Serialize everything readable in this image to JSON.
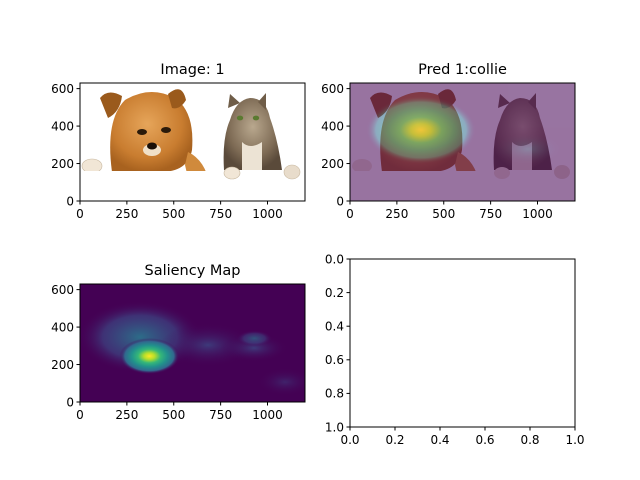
{
  "figure": {
    "background": "#ffffff"
  },
  "chart_data": [
    {
      "type": "image",
      "title": "Image: 1",
      "content": "photo of a dog and a cat",
      "x_ticks": [
        0,
        250,
        500,
        750,
        1000
      ],
      "y_ticks": [
        0,
        200,
        400,
        600
      ],
      "xlim": [
        0,
        1200
      ],
      "ylim": [
        630,
        0
      ]
    },
    {
      "type": "image",
      "title": "Pred 1:collie",
      "content": "photo overlaid with saliency heatmap",
      "x_ticks": [
        0,
        250,
        500,
        750,
        1000
      ],
      "y_ticks": [
        0,
        200,
        400,
        600
      ],
      "xlim": [
        0,
        1200
      ],
      "ylim": [
        630,
        0
      ]
    },
    {
      "type": "heatmap",
      "title": "Saliency Map",
      "colormap": "viridis",
      "x_ticks": [
        0,
        250,
        500,
        750,
        1000
      ],
      "y_ticks": [
        0,
        200,
        400,
        600
      ],
      "xlim": [
        0,
        1200
      ],
      "ylim": [
        630,
        0
      ],
      "peak": {
        "x": 370,
        "y": 245,
        "level": 1.0
      },
      "secondary": {
        "x": 930,
        "y": 340,
        "level": 0.35
      }
    },
    {
      "type": "empty",
      "title": "",
      "x_ticks": [
        "0.0",
        "0.2",
        "0.4",
        "0.6",
        "0.8",
        "1.0"
      ],
      "y_ticks": [
        "0.0",
        "0.2",
        "0.4",
        "0.6",
        "0.8",
        "1.0"
      ],
      "xlim": [
        0,
        1
      ],
      "ylim": [
        0,
        1
      ]
    }
  ],
  "colors": {
    "viridis_dark": "#440154",
    "viridis_mid": "#21918c",
    "viridis_light": "#fde725",
    "dog_fur": "#d08a3c",
    "cat_fur": "#8c7a64",
    "paw": "#f1e6d6"
  }
}
